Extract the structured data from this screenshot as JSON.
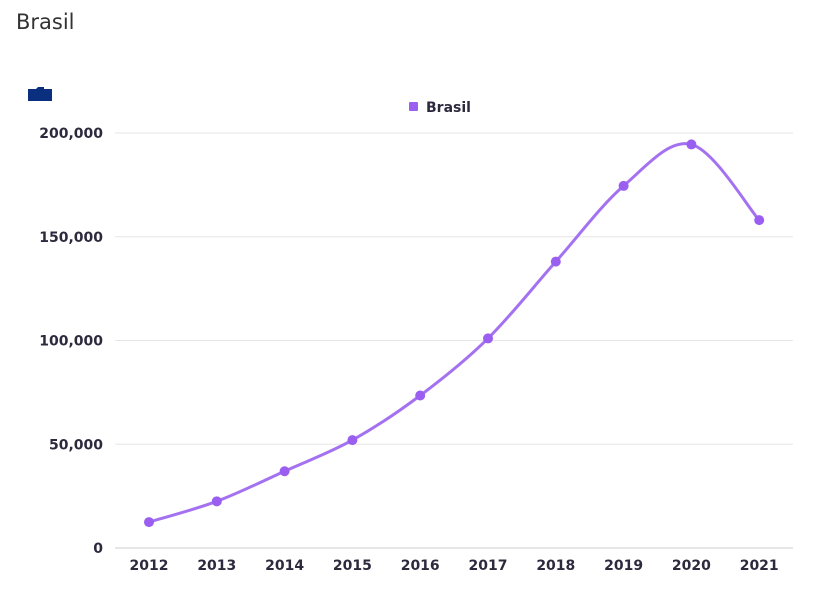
{
  "page": {
    "title": "Brasil"
  },
  "icons": {
    "export": "folder-icon",
    "export_color": "#0b2f7f"
  },
  "chart_data": {
    "type": "line",
    "title": "",
    "xlabel": "",
    "ylabel": "",
    "x": [
      "2012",
      "2013",
      "2014",
      "2015",
      "2016",
      "2017",
      "2018",
      "2019",
      "2020",
      "2021"
    ],
    "series": [
      {
        "name": "Brasil",
        "values": [
          12500,
          22500,
          37000,
          52000,
          73500,
          101000,
          138000,
          174500,
          194500,
          158000
        ]
      }
    ],
    "ylim": [
      0,
      200000
    ],
    "yticks": [
      {
        "value": 0,
        "label": "0"
      },
      {
        "value": 50000,
        "label": "50,000"
      },
      {
        "value": 100000,
        "label": "100,000"
      },
      {
        "value": 150000,
        "label": "150,000"
      },
      {
        "value": 200000,
        "label": "200,000"
      }
    ],
    "grid": true,
    "legend": "top-center",
    "colors": {
      "line": "#a472f0",
      "point": "#9a5ff0",
      "grid": "#e6e6e6",
      "axis": "#cccccc",
      "text": "#2d2a3e"
    }
  }
}
